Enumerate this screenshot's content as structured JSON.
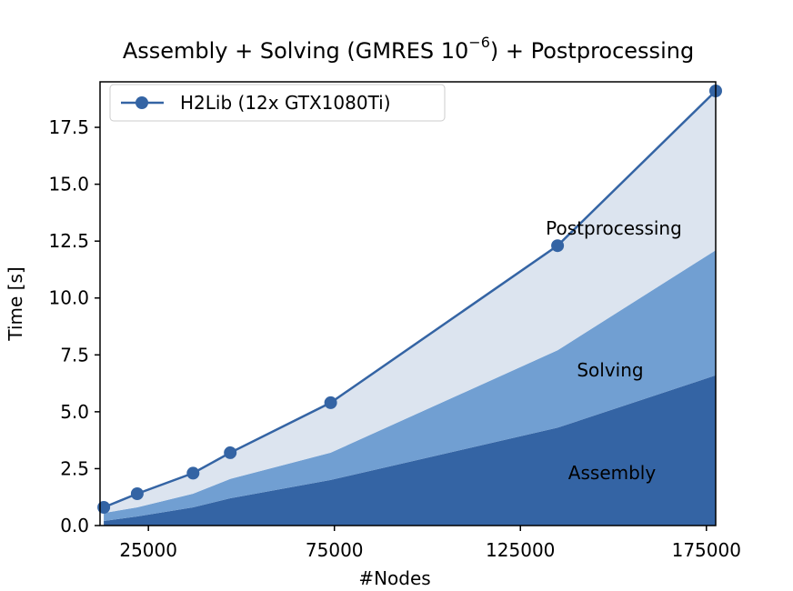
{
  "chart_data": {
    "type": "area",
    "title_main": "Assembly + Solving (GMRES 10",
    "title_sup": "−6",
    "title_tail": ") + Postprocessing",
    "xlabel": "#Nodes",
    "ylabel": "Time [s]",
    "xlim": [
      12000,
      177500
    ],
    "ylim": [
      0,
      19.5
    ],
    "xticks": [
      25000,
      75000,
      125000,
      175000
    ],
    "xtick_labels": [
      "25000",
      "75000",
      "125000",
      "175000"
    ],
    "yticks": [
      0.0,
      2.5,
      5.0,
      7.5,
      10.0,
      12.5,
      15.0,
      17.5
    ],
    "ytick_labels": [
      "0.0",
      "2.5",
      "5.0",
      "7.5",
      "10.0",
      "12.5",
      "15.0",
      "17.5"
    ],
    "x": [
      13000,
      22000,
      37000,
      47000,
      74000,
      135000,
      177500
    ],
    "stacked_areas": [
      {
        "name": "Assembly",
        "color": "#3464a4",
        "values": [
          0.2,
          0.4,
          0.8,
          1.2,
          2.0,
          4.3,
          6.6
        ]
      },
      {
        "name": "Solving",
        "color": "#719fd2",
        "values": [
          0.35,
          0.4,
          0.6,
          0.85,
          1.2,
          3.4,
          5.5
        ]
      },
      {
        "name": "Postprocessing",
        "color": "#dce4ef",
        "values": [
          0.25,
          0.6,
          0.9,
          1.15,
          2.2,
          4.6,
          7.0
        ]
      }
    ],
    "line_series": {
      "name": "H2Lib (12x GTX1080Ti)",
      "color": "#3464a4",
      "values": [
        0.8,
        1.4,
        2.3,
        3.2,
        5.4,
        12.3,
        19.1
      ]
    },
    "legend_position": "upper-left",
    "grid": false
  }
}
